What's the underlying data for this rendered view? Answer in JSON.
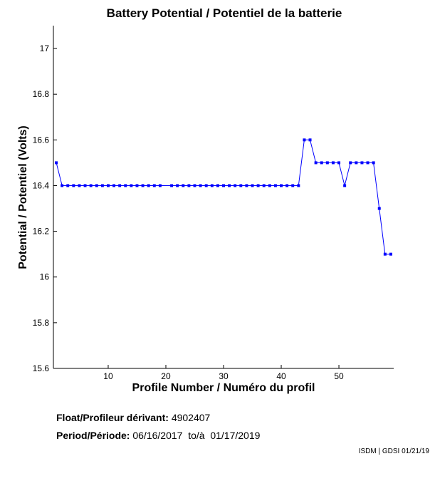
{
  "chart_data": {
    "type": "line",
    "title": "Battery Potential / Potentiel de la batterie",
    "xlabel": "Profile Number / Numéro du profil",
    "ylabel": "Potential / Potentiel (Volts)",
    "xlim": [
      0.5,
      59.5
    ],
    "ylim": [
      15.6,
      17.1
    ],
    "x_ticks": [
      10,
      20,
      30,
      40,
      50
    ],
    "x_tick_labels": [
      "10",
      "20",
      "30",
      "40",
      "50"
    ],
    "y_ticks": [
      15.6,
      15.8,
      16,
      16.2,
      16.4,
      16.6,
      16.8,
      17
    ],
    "y_tick_labels": [
      "15.6",
      "15.8",
      "16",
      "16.2",
      "16.4",
      "16.6",
      "16.8",
      "17"
    ],
    "grid": false,
    "series": [
      {
        "color": "#0000ff",
        "marker": "square",
        "x": [
          1,
          2,
          3,
          4,
          5,
          6,
          7,
          8,
          9,
          10,
          11,
          12,
          13,
          14,
          15,
          16,
          17,
          18,
          19,
          21,
          22,
          23,
          24,
          25,
          26,
          27,
          28,
          29,
          30,
          31,
          32,
          33,
          34,
          35,
          36,
          37,
          38,
          39,
          40,
          41,
          42,
          43,
          44,
          45,
          46,
          47,
          48,
          49,
          50,
          51,
          52,
          53,
          54,
          55,
          56,
          57,
          58,
          59
        ],
        "y": [
          16.5,
          16.4,
          16.4,
          16.4,
          16.4,
          16.4,
          16.4,
          16.4,
          16.4,
          16.4,
          16.4,
          16.4,
          16.4,
          16.4,
          16.4,
          16.4,
          16.4,
          16.4,
          16.4,
          16.4,
          16.4,
          16.4,
          16.4,
          16.4,
          16.4,
          16.4,
          16.4,
          16.4,
          16.4,
          16.4,
          16.4,
          16.4,
          16.4,
          16.4,
          16.4,
          16.4,
          16.4,
          16.4,
          16.4,
          16.4,
          16.4,
          16.4,
          16.6,
          16.6,
          16.5,
          16.5,
          16.5,
          16.5,
          16.5,
          16.4,
          16.5,
          16.5,
          16.5,
          16.5,
          16.5,
          16.3,
          16.1,
          16.1
        ]
      }
    ]
  },
  "info": {
    "float_label": "Float/Profileur dérivant:",
    "float_value": "4902407",
    "period_label": "Period/Période:",
    "period_value": "06/16/2017  to/à  01/17/2019"
  },
  "credit": "ISDM | GDSI 01/21/19"
}
